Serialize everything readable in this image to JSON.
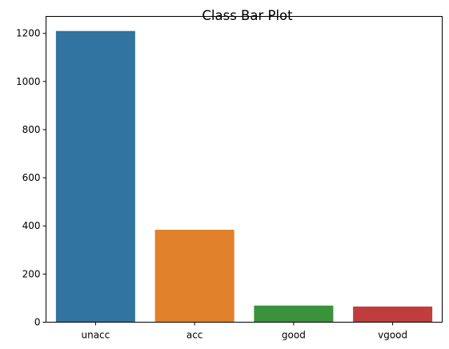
{
  "chart_data": {
    "type": "bar",
    "title": "Class Bar Plot",
    "xlabel": "",
    "ylabel": "",
    "categories": [
      "unacc",
      "acc",
      "good",
      "vgood"
    ],
    "values": [
      1210,
      384,
      69,
      65
    ],
    "colors": [
      "#3274a1",
      "#e1812c",
      "#3a923a",
      "#c03d3e"
    ],
    "ylim": [
      0,
      1270.5
    ],
    "yticks": [
      0,
      200,
      400,
      600,
      800,
      1000,
      1200
    ],
    "grid": false,
    "legend": "none"
  }
}
